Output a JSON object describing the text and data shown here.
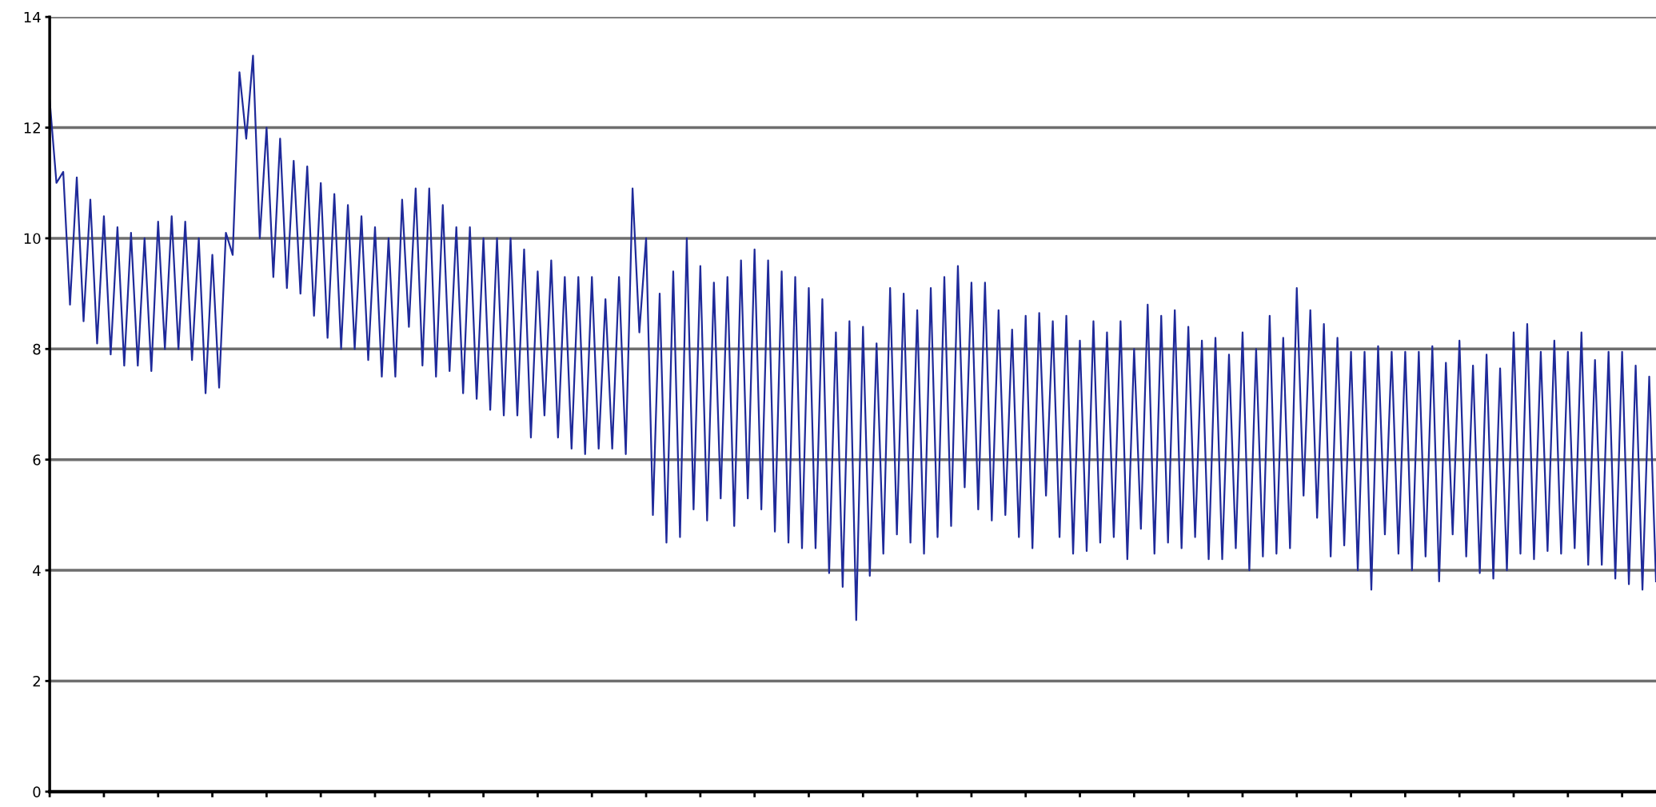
{
  "chart_data": {
    "type": "line",
    "categories": [
      null,
      null,
      null,
      null,
      null,
      null,
      null,
      null,
      null,
      null,
      null,
      null,
      null,
      null,
      null,
      null,
      null,
      null,
      null,
      null,
      null,
      null,
      null,
      null,
      null,
      null,
      null,
      null,
      null,
      null,
      null,
      null,
      null,
      null,
      null,
      null,
      null,
      null,
      null,
      null,
      null,
      null,
      null,
      null,
      null,
      null,
      null,
      null,
      null,
      null,
      null,
      null,
      null,
      null,
      null,
      null,
      null,
      null,
      null,
      null,
      null,
      null,
      null,
      null,
      null,
      null,
      null,
      null,
      null,
      null,
      null,
      null,
      null,
      null,
      null,
      null,
      null,
      null,
      null,
      null,
      null,
      null,
      null,
      null,
      null,
      null,
      null,
      null,
      null,
      null,
      null,
      null,
      null,
      null,
      null,
      null,
      null,
      null,
      null,
      null,
      null,
      null,
      null,
      null,
      null,
      null,
      null,
      null,
      null,
      null,
      null,
      null,
      null,
      null,
      null,
      null,
      null,
      null,
      null,
      null,
      null,
      null,
      null,
      null,
      null,
      null,
      null,
      null,
      null,
      null,
      null,
      null,
      null,
      null,
      null,
      null,
      null,
      null,
      null,
      null,
      null,
      null,
      null,
      null,
      null,
      null,
      null,
      null,
      null,
      null,
      null,
      null,
      null,
      null,
      null,
      null,
      null,
      null,
      null,
      null,
      null,
      null,
      null,
      null,
      null,
      null,
      null,
      null,
      null,
      null,
      null,
      null,
      null,
      null,
      null,
      null,
      null,
      null,
      null,
      null,
      null,
      null,
      null,
      null,
      null,
      null,
      null,
      null,
      null,
      null,
      null,
      null,
      null,
      null,
      null,
      null,
      null,
      null,
      null,
      null,
      null,
      null,
      null,
      null,
      null,
      null,
      null,
      null,
      null,
      null,
      null,
      null,
      null,
      null,
      null,
      null,
      null,
      null,
      null,
      null,
      null,
      null,
      null,
      null,
      null,
      null,
      null,
      null,
      null,
      null,
      null,
      null,
      null,
      null,
      null,
      null,
      null,
      null
    ],
    "series": [
      {
        "color": "#1f2a9a",
        "values": [
          12.5,
          11.0,
          11.2,
          8.8,
          11.1,
          8.5,
          10.7,
          8.1,
          10.4,
          7.9,
          10.2,
          7.7,
          10.1,
          7.7,
          10.0,
          7.6,
          10.3,
          8.0,
          10.4,
          8.0,
          10.3,
          7.8,
          10.0,
          7.2,
          9.7,
          7.3,
          10.1,
          9.7,
          13.0,
          11.8,
          13.3,
          10.0,
          12.0,
          9.3,
          11.8,
          9.1,
          11.4,
          9.0,
          11.3,
          8.6,
          11.0,
          8.2,
          10.8,
          8.0,
          10.6,
          8.0,
          10.4,
          7.8,
          10.2,
          7.5,
          10.0,
          7.5,
          10.7,
          8.4,
          10.9,
          7.7,
          10.9,
          7.5,
          10.6,
          7.6,
          10.2,
          7.2,
          10.2,
          7.1,
          10.0,
          6.9,
          10.0,
          6.8,
          10.0,
          6.8,
          9.8,
          6.4,
          9.4,
          6.8,
          9.6,
          6.4,
          9.3,
          6.2,
          9.3,
          6.1,
          9.3,
          6.2,
          8.9,
          6.2,
          9.3,
          6.1,
          10.9,
          8.3,
          10.0,
          5.0,
          9.0,
          4.5,
          9.4,
          4.6,
          10.0,
          5.1,
          9.5,
          4.9,
          9.2,
          5.3,
          9.3,
          4.8,
          9.6,
          5.3,
          9.8,
          5.1,
          9.6,
          4.7,
          9.4,
          4.5,
          9.3,
          4.4,
          9.1,
          4.4,
          8.9,
          3.95,
          8.3,
          3.7,
          8.5,
          3.1,
          8.4,
          3.9,
          8.1,
          4.3,
          9.1,
          4.65,
          9.0,
          4.5,
          8.7,
          4.3,
          9.1,
          4.6,
          9.3,
          4.8,
          9.5,
          5.5,
          9.2,
          5.1,
          9.2,
          4.9,
          8.7,
          5.0,
          8.35,
          4.6,
          8.6,
          4.4,
          8.65,
          5.35,
          8.5,
          4.6,
          8.6,
          4.3,
          8.15,
          4.35,
          8.5,
          4.5,
          8.3,
          4.6,
          8.5,
          4.2,
          8.0,
          4.75,
          8.8,
          4.3,
          8.6,
          4.5,
          8.7,
          4.4,
          8.4,
          4.6,
          8.15,
          4.2,
          8.2,
          4.2,
          7.9,
          4.4,
          8.3,
          4.0,
          8.0,
          4.25,
          8.6,
          4.3,
          8.2,
          4.4,
          9.1,
          5.35,
          8.7,
          4.95,
          8.45,
          4.25,
          8.2,
          4.45,
          7.95,
          4.0,
          7.95,
          3.65,
          8.05,
          4.65,
          7.95,
          4.3,
          7.95,
          4.0,
          7.95,
          4.25,
          8.05,
          3.8,
          7.75,
          4.65,
          8.15,
          4.25,
          7.7,
          3.95,
          7.9,
          3.85,
          7.65,
          4.0,
          8.3,
          4.3,
          8.45,
          4.2,
          7.95,
          4.35,
          8.15,
          4.3,
          7.95,
          4.4,
          8.3,
          4.1,
          7.8,
          4.1,
          7.95,
          3.85,
          7.95,
          3.75,
          7.7,
          3.65,
          7.5,
          3.8
        ]
      }
    ],
    "ylim": [
      0,
      14
    ],
    "yticks": [
      0,
      2,
      4,
      6,
      8,
      10,
      12,
      14
    ],
    "grid": "y",
    "marker": "none",
    "line_style": "solid"
  }
}
